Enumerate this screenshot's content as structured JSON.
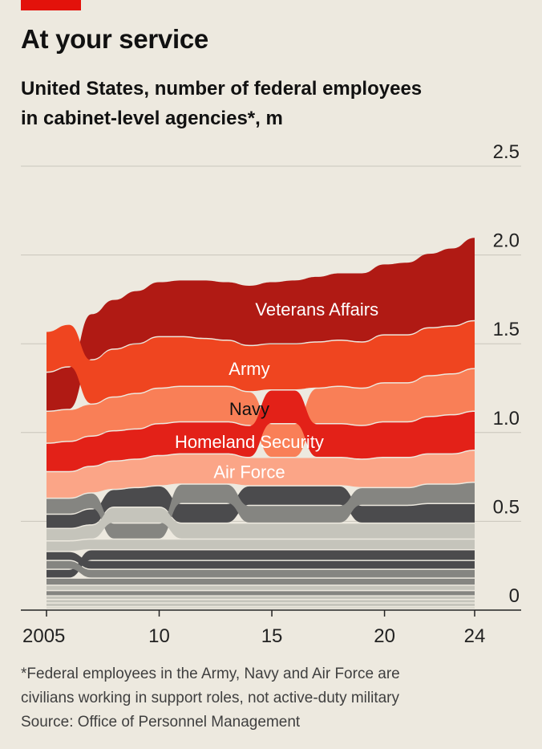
{
  "header": {
    "title": "At your service",
    "subtitle_line1": "United States, number of federal employees",
    "subtitle_line2": "in cabinet-level agencies*, m"
  },
  "footnote": {
    "line1": "*Federal employees in the Army, Navy and Air Force are",
    "line2": "civilians working in support roles, not active-duty military",
    "source": "Source: Office of Personnel Management"
  },
  "colors": {
    "background": "#ede9df",
    "accent": "#e3120b",
    "veterans_affairs": "#b01a14",
    "army": "#ef4520",
    "navy": "#f97f57",
    "homeland_security": "#e32118",
    "air_force": "#fba587",
    "others_dark": "#4b4b4d",
    "others_mid": "#858581",
    "others_light": "#c5c4bb"
  },
  "chart_data": {
    "type": "area",
    "stacked": true,
    "ranked": true,
    "x_tick_labels": [
      "2005",
      "10",
      "15",
      "20",
      "24"
    ],
    "x_ticks": [
      2005,
      2010,
      2015,
      2020,
      2024
    ],
    "xlim": [
      2005,
      2024
    ],
    "y_tick_labels": [
      "0",
      "0.5",
      "1.0",
      "1.5",
      "2.0",
      "2.5"
    ],
    "y_ticks": [
      0,
      0.5,
      1.0,
      1.5,
      2.0,
      2.5
    ],
    "ylim": [
      0,
      2.5
    ],
    "grid": true,
    "x": [
      2005,
      2006,
      2007,
      2008,
      2009,
      2010,
      2011,
      2012,
      2013,
      2014,
      2015,
      2016,
      2017,
      2018,
      2019,
      2020,
      2021,
      2022,
      2023,
      2024
    ],
    "series": [
      {
        "name": "Veterans Affairs",
        "color": "#b01a14",
        "label_year": 2017,
        "values": [
          0.22,
          0.24,
          0.26,
          0.28,
          0.3,
          0.31,
          0.32,
          0.33,
          0.33,
          0.34,
          0.35,
          0.36,
          0.37,
          0.38,
          0.39,
          0.4,
          0.41,
          0.42,
          0.44,
          0.47
        ]
      },
      {
        "name": "Army",
        "color": "#ef4520",
        "label_year": 2014,
        "values": [
          0.23,
          0.24,
          0.25,
          0.27,
          0.28,
          0.29,
          0.28,
          0.27,
          0.26,
          0.26,
          0.26,
          0.26,
          0.26,
          0.26,
          0.26,
          0.27,
          0.27,
          0.27,
          0.27,
          0.27
        ]
      },
      {
        "name": "Navy",
        "color": "#f97f57",
        "label_year": 2014,
        "values": [
          0.18,
          0.18,
          0.18,
          0.19,
          0.2,
          0.2,
          0.2,
          0.2,
          0.2,
          0.19,
          0.19,
          0.19,
          0.2,
          0.21,
          0.21,
          0.22,
          0.22,
          0.23,
          0.23,
          0.24
        ]
      },
      {
        "name": "Homeland Security",
        "color": "#e32118",
        "label_year": 2014,
        "values": [
          0.16,
          0.17,
          0.17,
          0.17,
          0.17,
          0.18,
          0.18,
          0.18,
          0.18,
          0.18,
          0.19,
          0.19,
          0.19,
          0.19,
          0.19,
          0.2,
          0.2,
          0.21,
          0.22,
          0.22
        ]
      },
      {
        "name": "Air Force",
        "color": "#fba587",
        "label_year": 2014,
        "values": [
          0.15,
          0.15,
          0.15,
          0.16,
          0.16,
          0.17,
          0.17,
          0.17,
          0.17,
          0.16,
          0.16,
          0.16,
          0.16,
          0.16,
          0.16,
          0.17,
          0.17,
          0.17,
          0.17,
          0.18
        ]
      }
    ],
    "other_agencies": [
      {
        "color": "#4b4b4d",
        "values": [
          0.08,
          0.08,
          0.09,
          0.1,
          0.11,
          0.12,
          0.11,
          0.11,
          0.11,
          0.11,
          0.11,
          0.11,
          0.11,
          0.11,
          0.1,
          0.1,
          0.1,
          0.11,
          0.11,
          0.11
        ]
      },
      {
        "color": "#858581",
        "values": [
          0.09,
          0.09,
          0.09,
          0.09,
          0.09,
          0.09,
          0.11,
          0.11,
          0.11,
          0.1,
          0.1,
          0.1,
          0.1,
          0.1,
          0.1,
          0.1,
          0.1,
          0.11,
          0.11,
          0.12
        ]
      },
      {
        "color": "#4b4b4d",
        "values": [
          0.05,
          0.05,
          0.06,
          0.06,
          0.06,
          0.06,
          0.06,
          0.06,
          0.06,
          0.06,
          0.06,
          0.06,
          0.06,
          0.06,
          0.06,
          0.06,
          0.06,
          0.06,
          0.06,
          0.06
        ]
      },
      {
        "color": "#c5c4bb",
        "values": [
          0.07,
          0.07,
          0.08,
          0.09,
          0.09,
          0.09,
          0.09,
          0.09,
          0.09,
          0.09,
          0.09,
          0.09,
          0.09,
          0.09,
          0.09,
          0.09,
          0.09,
          0.09,
          0.09,
          0.09
        ]
      },
      {
        "color": "#858581",
        "values": [
          0.05,
          0.05,
          0.05,
          0.05,
          0.05,
          0.05,
          0.05,
          0.05,
          0.05,
          0.05,
          0.05,
          0.05,
          0.05,
          0.05,
          0.05,
          0.05,
          0.05,
          0.05,
          0.05,
          0.05
        ]
      },
      {
        "color": "#c5c4bb",
        "values": [
          0.06,
          0.06,
          0.06,
          0.06,
          0.06,
          0.06,
          0.06,
          0.06,
          0.06,
          0.06,
          0.06,
          0.06,
          0.06,
          0.06,
          0.06,
          0.06,
          0.06,
          0.06,
          0.06,
          0.06
        ]
      },
      {
        "color": "#4b4b4d",
        "values": [
          0.05,
          0.05,
          0.05,
          0.05,
          0.05,
          0.05,
          0.05,
          0.05,
          0.05,
          0.05,
          0.05,
          0.05,
          0.05,
          0.05,
          0.05,
          0.05,
          0.05,
          0.05,
          0.05,
          0.05
        ]
      },
      {
        "color": "#858581",
        "values": [
          0.04,
          0.04,
          0.04,
          0.04,
          0.04,
          0.04,
          0.04,
          0.04,
          0.04,
          0.04,
          0.04,
          0.04,
          0.04,
          0.04,
          0.04,
          0.04,
          0.04,
          0.04,
          0.04,
          0.04
        ]
      },
      {
        "color": "#858581",
        "values": [
          0.03,
          0.03,
          0.03,
          0.03,
          0.03,
          0.03,
          0.03,
          0.03,
          0.03,
          0.03,
          0.03,
          0.03,
          0.03,
          0.03,
          0.03,
          0.03,
          0.03,
          0.03,
          0.03,
          0.03
        ]
      },
      {
        "color": "#c5c4bb",
        "values": [
          0.03,
          0.03,
          0.03,
          0.03,
          0.03,
          0.03,
          0.03,
          0.03,
          0.03,
          0.03,
          0.03,
          0.03,
          0.03,
          0.03,
          0.03,
          0.03,
          0.03,
          0.03,
          0.03,
          0.03
        ]
      },
      {
        "color": "#c5c4bb",
        "values": [
          0.02,
          0.02,
          0.02,
          0.02,
          0.02,
          0.02,
          0.02,
          0.02,
          0.02,
          0.02,
          0.02,
          0.02,
          0.02,
          0.02,
          0.02,
          0.02,
          0.02,
          0.02,
          0.02,
          0.02
        ]
      },
      {
        "color": "#c5c4bb",
        "values": [
          0.02,
          0.02,
          0.02,
          0.02,
          0.02,
          0.02,
          0.02,
          0.02,
          0.02,
          0.02,
          0.02,
          0.02,
          0.02,
          0.02,
          0.02,
          0.02,
          0.02,
          0.02,
          0.02,
          0.02
        ]
      },
      {
        "color": "#c5c4bb",
        "values": [
          0.02,
          0.02,
          0.02,
          0.02,
          0.02,
          0.02,
          0.02,
          0.02,
          0.02,
          0.02,
          0.02,
          0.02,
          0.02,
          0.02,
          0.02,
          0.02,
          0.02,
          0.02,
          0.02,
          0.02
        ]
      },
      {
        "color": "#c5c4bb",
        "values": [
          0.01,
          0.01,
          0.01,
          0.01,
          0.01,
          0.01,
          0.01,
          0.01,
          0.01,
          0.01,
          0.01,
          0.01,
          0.01,
          0.01,
          0.01,
          0.01,
          0.01,
          0.01,
          0.01,
          0.01
        ]
      },
      {
        "color": "#c5c4bb",
        "values": [
          0.01,
          0.01,
          0.01,
          0.01,
          0.01,
          0.01,
          0.01,
          0.01,
          0.01,
          0.01,
          0.01,
          0.01,
          0.01,
          0.01,
          0.01,
          0.01,
          0.01,
          0.01,
          0.01,
          0.01
        ]
      }
    ]
  }
}
